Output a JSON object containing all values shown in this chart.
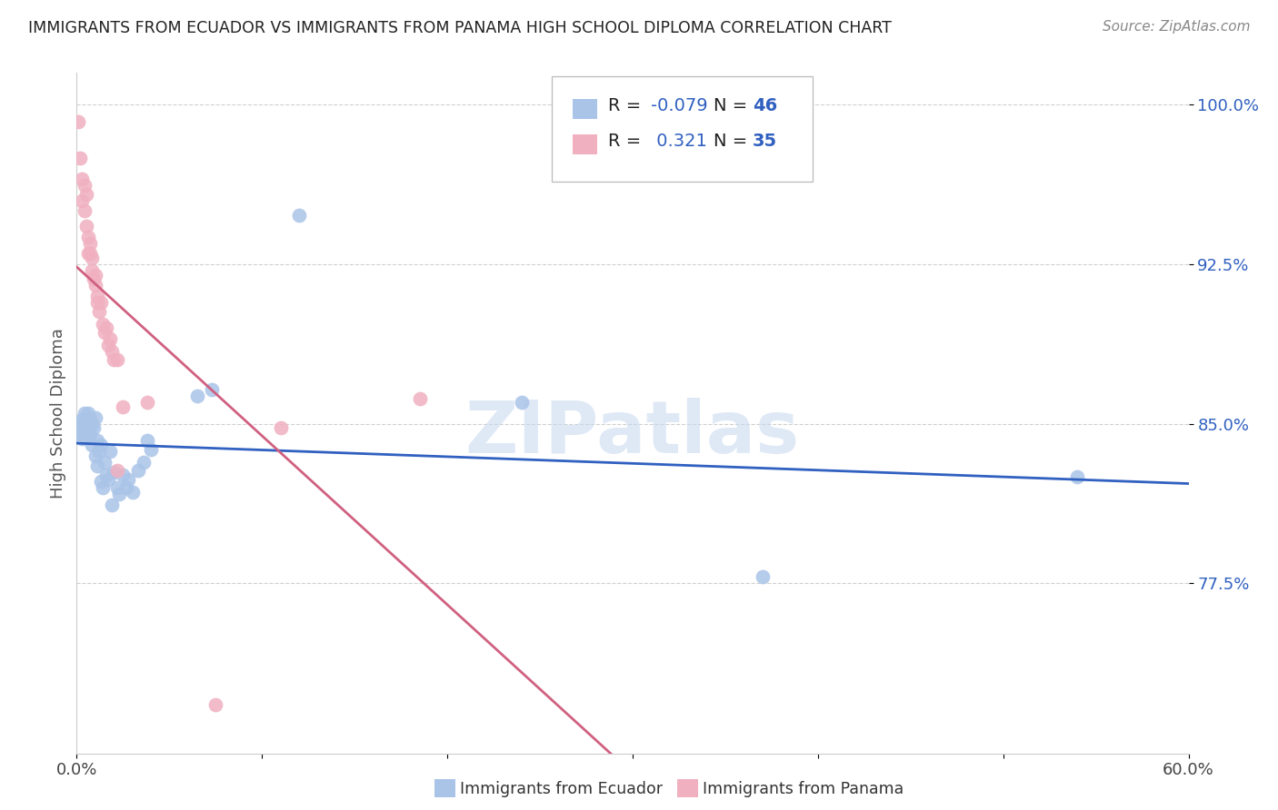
{
  "title": "IMMIGRANTS FROM ECUADOR VS IMMIGRANTS FROM PANAMA HIGH SCHOOL DIPLOMA CORRELATION CHART",
  "source": "Source: ZipAtlas.com",
  "ylabel": "High School Diploma",
  "xlim": [
    0.0,
    0.6
  ],
  "ylim": [
    0.695,
    1.015
  ],
  "yticks": [
    0.775,
    0.85,
    0.925,
    1.0
  ],
  "yticklabels": [
    "77.5%",
    "85.0%",
    "92.5%",
    "100.0%"
  ],
  "xtick_positions": [
    0.0,
    0.1,
    0.2,
    0.3,
    0.4,
    0.5,
    0.6
  ],
  "xticklabels": [
    "0.0%",
    "",
    "",
    "",
    "",
    "",
    "60.0%"
  ],
  "ecuador_color": "#aac4e8",
  "panama_color": "#f0b0c0",
  "ecuador_line_color": "#3060c0",
  "panama_line_color": "#d06080",
  "watermark": "ZIPatlas",
  "ecuador_R": -0.079,
  "ecuador_N": 46,
  "panama_R": 0.321,
  "panama_N": 35,
  "ecuador_points": [
    [
      0.001,
      0.85
    ],
    [
      0.002,
      0.848
    ],
    [
      0.002,
      0.845
    ],
    [
      0.003,
      0.852
    ],
    [
      0.003,
      0.843
    ],
    [
      0.004,
      0.855
    ],
    [
      0.004,
      0.847
    ],
    [
      0.005,
      0.851
    ],
    [
      0.005,
      0.843
    ],
    [
      0.006,
      0.855
    ],
    [
      0.006,
      0.848
    ],
    [
      0.007,
      0.852
    ],
    [
      0.007,
      0.845
    ],
    [
      0.008,
      0.85
    ],
    [
      0.008,
      0.84
    ],
    [
      0.009,
      0.848
    ],
    [
      0.01,
      0.853
    ],
    [
      0.01,
      0.835
    ],
    [
      0.011,
      0.83
    ],
    [
      0.011,
      0.842
    ],
    [
      0.012,
      0.837
    ],
    [
      0.013,
      0.84
    ],
    [
      0.013,
      0.823
    ],
    [
      0.014,
      0.82
    ],
    [
      0.015,
      0.832
    ],
    [
      0.016,
      0.826
    ],
    [
      0.017,
      0.824
    ],
    [
      0.018,
      0.837
    ],
    [
      0.019,
      0.812
    ],
    [
      0.02,
      0.827
    ],
    [
      0.022,
      0.82
    ],
    [
      0.023,
      0.817
    ],
    [
      0.025,
      0.826
    ],
    [
      0.027,
      0.82
    ],
    [
      0.028,
      0.824
    ],
    [
      0.03,
      0.818
    ],
    [
      0.033,
      0.828
    ],
    [
      0.036,
      0.832
    ],
    [
      0.038,
      0.842
    ],
    [
      0.04,
      0.838
    ],
    [
      0.065,
      0.863
    ],
    [
      0.073,
      0.866
    ],
    [
      0.12,
      0.948
    ],
    [
      0.24,
      0.86
    ],
    [
      0.37,
      0.778
    ],
    [
      0.54,
      0.825
    ]
  ],
  "panama_points": [
    [
      0.001,
      0.992
    ],
    [
      0.002,
      0.975
    ],
    [
      0.003,
      0.965
    ],
    [
      0.003,
      0.955
    ],
    [
      0.004,
      0.962
    ],
    [
      0.004,
      0.95
    ],
    [
      0.005,
      0.958
    ],
    [
      0.005,
      0.943
    ],
    [
      0.006,
      0.938
    ],
    [
      0.006,
      0.93
    ],
    [
      0.007,
      0.935
    ],
    [
      0.007,
      0.93
    ],
    [
      0.008,
      0.928
    ],
    [
      0.008,
      0.922
    ],
    [
      0.009,
      0.918
    ],
    [
      0.01,
      0.92
    ],
    [
      0.01,
      0.915
    ],
    [
      0.011,
      0.91
    ],
    [
      0.011,
      0.907
    ],
    [
      0.012,
      0.903
    ],
    [
      0.013,
      0.907
    ],
    [
      0.014,
      0.897
    ],
    [
      0.015,
      0.893
    ],
    [
      0.016,
      0.895
    ],
    [
      0.017,
      0.887
    ],
    [
      0.018,
      0.89
    ],
    [
      0.019,
      0.884
    ],
    [
      0.02,
      0.88
    ],
    [
      0.022,
      0.88
    ],
    [
      0.022,
      0.828
    ],
    [
      0.025,
      0.858
    ],
    [
      0.038,
      0.86
    ],
    [
      0.075,
      0.718
    ],
    [
      0.11,
      0.848
    ],
    [
      0.185,
      0.862
    ]
  ]
}
